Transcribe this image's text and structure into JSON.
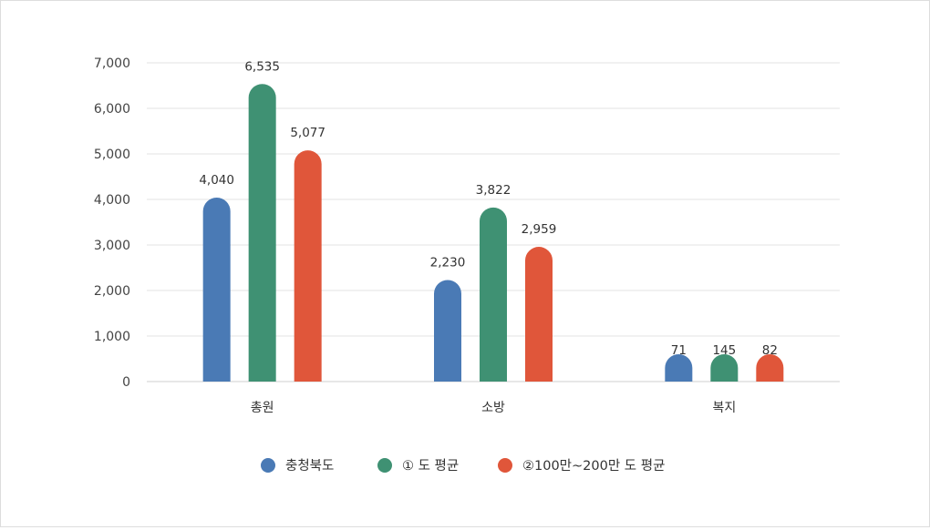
{
  "chart_data": {
    "type": "bar",
    "categories": [
      "총원",
      "소방",
      "복지"
    ],
    "series": [
      {
        "name": "충청북도",
        "values": [
          4040,
          2230,
          71
        ],
        "color": "#4a7ab5"
      },
      {
        "name": "① 도 평균",
        "values": [
          6535,
          3822,
          145
        ],
        "color": "#3f9173"
      },
      {
        "name": "②100만~200만 도 평균",
        "values": [
          5077,
          2959,
          82
        ],
        "color": "#e0563a"
      }
    ],
    "data_labels": [
      [
        "4,040",
        "6,535",
        "5,077"
      ],
      [
        "2,230",
        "3,822",
        "2,959"
      ],
      [
        "71",
        "145",
        "82"
      ]
    ],
    "ylim": [
      0,
      7000
    ],
    "yticks": [
      0,
      1000,
      2000,
      3000,
      4000,
      5000,
      6000,
      7000
    ],
    "ytick_labels": [
      "0",
      "1,000",
      "2,000",
      "3,000",
      "4,000",
      "5,000",
      "6,000",
      "7,000"
    ],
    "grid": true,
    "legend_position": "bottom",
    "title": "",
    "xlabel": "",
    "ylabel": ""
  }
}
